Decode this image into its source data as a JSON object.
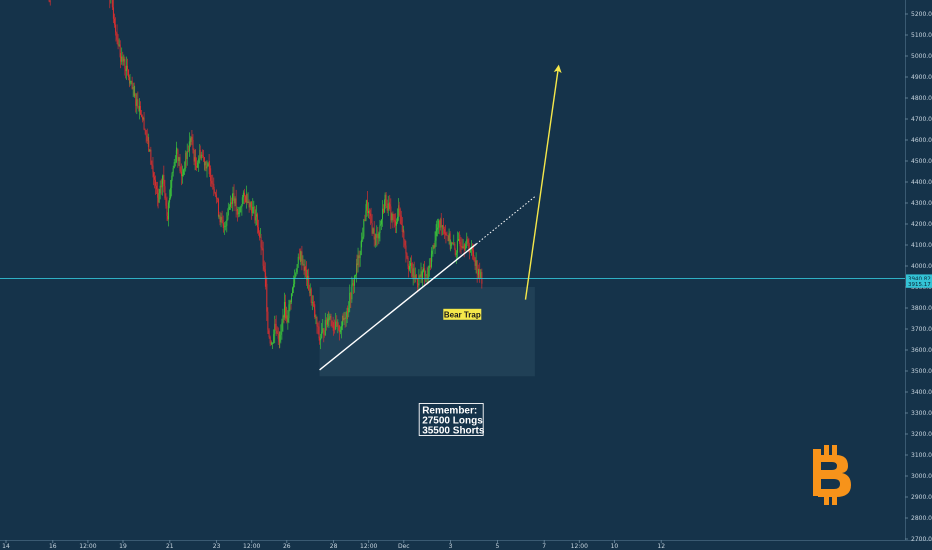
{
  "chart_data": {
    "type": "candlestick",
    "instrument_logo": "bitcoin-symbol",
    "y_axis": {
      "ylim": [
        2640,
        5290
      ],
      "ticks": [
        5200,
        5100,
        5000,
        4900,
        4800,
        4700,
        4600,
        4500,
        4400,
        4300,
        4200,
        4100,
        4000,
        3900,
        3800,
        3700,
        3600,
        3500,
        3400,
        3300,
        3200,
        3100,
        3000,
        2900,
        2800,
        2700
      ]
    },
    "x_axis": {
      "labels": [
        {
          "text": "14",
          "day": 14
        },
        {
          "text": "16",
          "day": 16
        },
        {
          "text": "12:00",
          "day": 17.5
        },
        {
          "text": "19",
          "day": 19
        },
        {
          "text": "21",
          "day": 21
        },
        {
          "text": "23",
          "day": 23
        },
        {
          "text": "12:00",
          "day": 24.5
        },
        {
          "text": "26",
          "day": 26
        },
        {
          "text": "28",
          "day": 28
        },
        {
          "text": "12:00",
          "day": 29.5
        },
        {
          "text": "Dec",
          "day": 31
        },
        {
          "text": "3",
          "day": 33
        },
        {
          "text": "5",
          "day": 35
        },
        {
          "text": "7",
          "day": 37
        },
        {
          "text": "12:00",
          "day": 38.5
        },
        {
          "text": "10",
          "day": 40
        },
        {
          "text": "12",
          "day": 42
        }
      ]
    },
    "price_lines": [
      {
        "label": "3940.82",
        "price": 3940.82,
        "color": "#33c3d6"
      },
      {
        "label": "3915.17",
        "price": 3915.17,
        "color": "#33c3d6"
      }
    ],
    "candle_path": [
      [
        15.8,
        5290
      ],
      [
        15.9,
        5230
      ],
      [
        17.0,
        5310
      ],
      [
        18.3,
        5350
      ],
      [
        18.5,
        5260
      ],
      [
        18.7,
        5120
      ],
      [
        18.9,
        5000
      ],
      [
        19.1,
        4950
      ],
      [
        19.3,
        4870
      ],
      [
        19.5,
        4800
      ],
      [
        19.7,
        4760
      ],
      [
        19.9,
        4680
      ],
      [
        20.1,
        4560
      ],
      [
        20.3,
        4430
      ],
      [
        20.5,
        4300
      ],
      [
        20.7,
        4420
      ],
      [
        20.9,
        4250
      ],
      [
        21.1,
        4440
      ],
      [
        21.3,
        4560
      ],
      [
        21.5,
        4420
      ],
      [
        21.7,
        4520
      ],
      [
        21.9,
        4610
      ],
      [
        22.1,
        4480
      ],
      [
        22.3,
        4540
      ],
      [
        22.5,
        4500
      ],
      [
        22.7,
        4450
      ],
      [
        22.9,
        4380
      ],
      [
        23.1,
        4250
      ],
      [
        23.3,
        4170
      ],
      [
        23.5,
        4270
      ],
      [
        23.7,
        4350
      ],
      [
        23.9,
        4230
      ],
      [
        24.1,
        4320
      ],
      [
        24.3,
        4330
      ],
      [
        24.5,
        4280
      ],
      [
        24.7,
        4230
      ],
      [
        24.9,
        4100
      ],
      [
        25.1,
        3900
      ],
      [
        25.2,
        3700
      ],
      [
        25.35,
        3620
      ],
      [
        25.5,
        3730
      ],
      [
        25.7,
        3650
      ],
      [
        25.9,
        3800
      ],
      [
        26.0,
        3750
      ],
      [
        26.2,
        3860
      ],
      [
        26.4,
        3990
      ],
      [
        26.6,
        4050
      ],
      [
        26.8,
        3970
      ],
      [
        27.0,
        3870
      ],
      [
        27.2,
        3760
      ],
      [
        27.4,
        3650
      ],
      [
        27.6,
        3700
      ],
      [
        27.8,
        3770
      ],
      [
        28.0,
        3720
      ],
      [
        28.2,
        3690
      ],
      [
        28.4,
        3740
      ],
      [
        28.6,
        3800
      ],
      [
        28.8,
        3900
      ],
      [
        29.0,
        4000
      ],
      [
        29.2,
        4120
      ],
      [
        29.4,
        4290
      ],
      [
        29.6,
        4200
      ],
      [
        29.8,
        4120
      ],
      [
        30.0,
        4200
      ],
      [
        30.2,
        4320
      ],
      [
        30.4,
        4260
      ],
      [
        30.6,
        4200
      ],
      [
        30.8,
        4270
      ],
      [
        31.0,
        4140
      ],
      [
        31.2,
        4010
      ],
      [
        31.4,
        3960
      ],
      [
        31.6,
        3930
      ],
      [
        31.8,
        3970
      ],
      [
        32.0,
        3940
      ],
      [
        32.2,
        4060
      ],
      [
        32.4,
        4170
      ],
      [
        32.6,
        4210
      ],
      [
        32.8,
        4160
      ],
      [
        33.0,
        4110
      ],
      [
        33.2,
        4070
      ],
      [
        33.4,
        4120
      ],
      [
        33.6,
        4110
      ],
      [
        33.8,
        4090
      ],
      [
        34.0,
        4050
      ],
      [
        34.2,
        3960
      ],
      [
        34.35,
        3940
      ]
    ],
    "annotations": [
      {
        "type": "trendline",
        "color": "#ffffff",
        "from": [
          27.4,
          3505
        ],
        "to": [
          34.1,
          4105
        ]
      },
      {
        "type": "trendline-extension",
        "style": "dotted",
        "color": "#ffffff",
        "from": [
          34.1,
          4105
        ],
        "to": [
          36.6,
          4330
        ]
      },
      {
        "type": "arrow",
        "color": "#f5e84a",
        "from": [
          36.2,
          3840
        ],
        "to": [
          37.6,
          4940
        ]
      },
      {
        "type": "shaded-region",
        "from": [
          27.4,
          3900
        ],
        "to": [
          36.6,
          3475
        ]
      },
      {
        "type": "label",
        "text": "Bear Trap",
        "at": [
          33.5,
          3770
        ],
        "background": "#f5e84a"
      },
      {
        "type": "textbox",
        "lines": [
          "Remember:",
          "27500 Longs",
          "35500 Shorts"
        ],
        "at": [
          32.0,
          3250
        ]
      }
    ]
  }
}
